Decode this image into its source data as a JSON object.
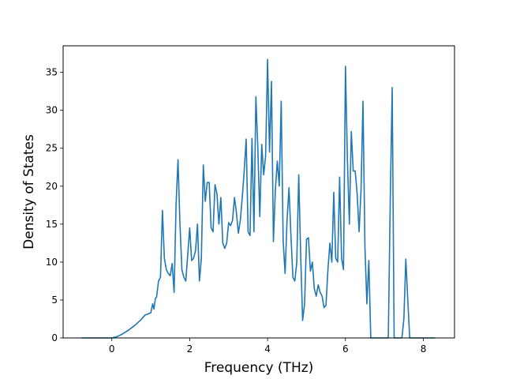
{
  "chart_data": {
    "type": "line",
    "title": "",
    "xlabel": "Frequency (THz)",
    "ylabel": "Density of States",
    "xlim": [
      -1.25,
      8.8
    ],
    "ylim": [
      0,
      38.5
    ],
    "xticks": [
      0,
      2,
      4,
      6,
      8
    ],
    "yticks": [
      0,
      5,
      10,
      15,
      20,
      25,
      30,
      35
    ],
    "grid": false,
    "legend": "none",
    "colors": {
      "line": "#1f77b4"
    },
    "series": [
      {
        "x": [
          -0.78,
          -0.5,
          -0.2,
          0.0,
          0.15,
          0.3,
          0.45,
          0.6,
          0.75,
          0.85,
          0.95,
          1.0,
          1.05,
          1.08,
          1.12,
          1.15,
          1.2,
          1.25,
          1.3,
          1.35,
          1.4,
          1.45,
          1.5,
          1.55,
          1.6,
          1.65,
          1.7,
          1.75,
          1.8,
          1.85,
          1.9,
          1.95,
          2.0,
          2.05,
          2.1,
          2.15,
          2.2,
          2.25,
          2.3,
          2.35,
          2.4,
          2.45,
          2.5,
          2.55,
          2.6,
          2.65,
          2.7,
          2.75,
          2.8,
          2.85,
          2.9,
          2.95,
          3.0,
          3.05,
          3.1,
          3.15,
          3.2,
          3.25,
          3.3,
          3.35,
          3.4,
          3.45,
          3.5,
          3.55,
          3.6,
          3.65,
          3.7,
          3.75,
          3.8,
          3.85,
          3.9,
          3.95,
          4.0,
          4.05,
          4.1,
          4.15,
          4.2,
          4.25,
          4.3,
          4.35,
          4.4,
          4.45,
          4.5,
          4.55,
          4.6,
          4.65,
          4.7,
          4.75,
          4.8,
          4.85,
          4.9,
          4.95,
          5.0,
          5.05,
          5.1,
          5.15,
          5.2,
          5.25,
          5.3,
          5.35,
          5.4,
          5.45,
          5.5,
          5.55,
          5.6,
          5.65,
          5.7,
          5.75,
          5.8,
          5.85,
          5.9,
          5.95,
          6.0,
          6.05,
          6.1,
          6.15,
          6.2,
          6.25,
          6.3,
          6.35,
          6.4,
          6.45,
          6.5,
          6.55,
          6.6,
          6.65,
          6.7,
          6.8,
          6.9,
          7.0,
          7.05,
          7.1,
          7.15,
          7.2,
          7.25,
          7.3,
          7.35,
          7.4,
          7.45,
          7.5,
          7.55,
          7.6,
          7.65,
          7.7,
          8.0,
          8.3
        ],
        "y": [
          0,
          0,
          0,
          0,
          0.2,
          0.6,
          1.1,
          1.7,
          2.4,
          3.0,
          3.2,
          3.3,
          4.5,
          3.8,
          5.2,
          5.4,
          7.5,
          8.0,
          16.8,
          10.5,
          9.0,
          8.5,
          8.2,
          9.8,
          6.0,
          17.5,
          23.5,
          15.0,
          9.0,
          8.0,
          7.5,
          11.0,
          14.5,
          10.2,
          10.5,
          11.5,
          15.0,
          7.5,
          10.5,
          22.8,
          18.0,
          20.5,
          20.5,
          14.5,
          14.0,
          20.2,
          19.0,
          15.0,
          18.5,
          12.5,
          11.8,
          12.5,
          15.2,
          14.8,
          15.5,
          18.5,
          16.5,
          13.8,
          15.5,
          18.5,
          22.0,
          26.2,
          14.0,
          13.5,
          26.3,
          14.0,
          31.8,
          25.0,
          16.0,
          25.5,
          21.5,
          24.0,
          36.7,
          24.5,
          33.8,
          12.7,
          19.5,
          23.3,
          20.0,
          31.2,
          12.8,
          8.5,
          15.5,
          19.8,
          13.5,
          8.0,
          7.5,
          10.0,
          21.5,
          11.0,
          2.3,
          4.5,
          13.0,
          13.2,
          8.8,
          10.0,
          6.5,
          5.5,
          7.0,
          6.0,
          5.5,
          4.0,
          4.3,
          9.0,
          12.5,
          10.0,
          19.2,
          10.5,
          10.0,
          21.2,
          10.5,
          9.0,
          35.8,
          23.5,
          15.0,
          27.2,
          22.0,
          22.0,
          19.0,
          14.0,
          19.5,
          31.2,
          12.0,
          4.5,
          10.2,
          0,
          0,
          0,
          0,
          0,
          0,
          0,
          18.0,
          33.0,
          0,
          0,
          0,
          0,
          0,
          2.5,
          10.4,
          5.0,
          0,
          0,
          0,
          0
        ]
      }
    ]
  }
}
